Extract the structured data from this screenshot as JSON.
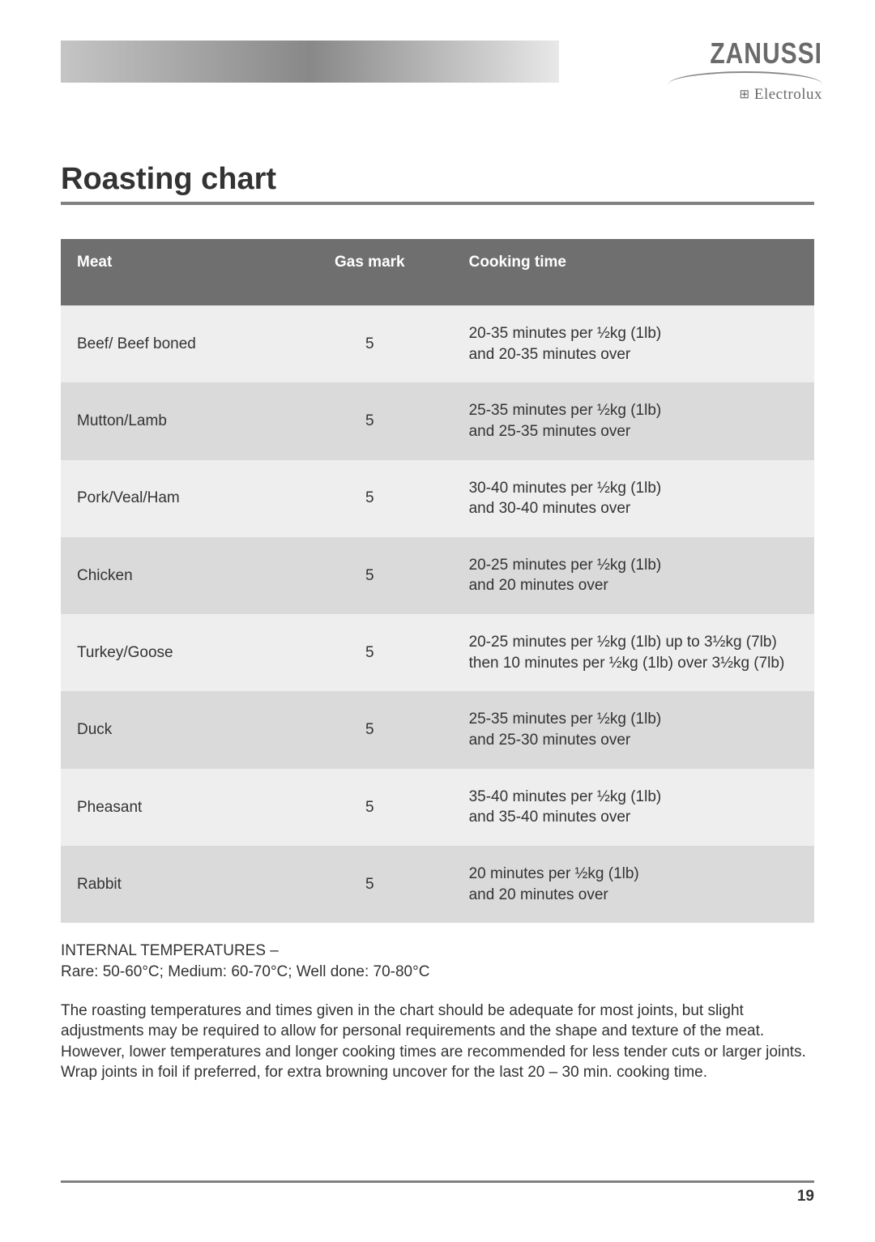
{
  "brand": {
    "primary": "ZANUSSI",
    "secondary": "Electrolux",
    "secondary_icon": "⊞"
  },
  "title": "Roasting chart",
  "table": {
    "columns": [
      "Meat",
      "Gas mark",
      "Cooking time"
    ],
    "col_widths_pct": [
      30,
      22,
      48
    ],
    "header_bg": "#6f6f6f",
    "header_fg": "#ffffff",
    "row_bg_odd": "#eeeeee",
    "row_bg_even": "#dadada",
    "font_size_pt": 14,
    "rows": [
      {
        "meat": "Beef/ Beef boned",
        "gas": "5",
        "time": "20-35 minutes per ½kg (1lb)\nand 20-35 minutes over"
      },
      {
        "meat": "Mutton/Lamb",
        "gas": "5",
        "time": "25-35 minutes per ½kg (1lb)\nand 25-35 minutes over"
      },
      {
        "meat": "Pork/Veal/Ham",
        "gas": "5",
        "time": "30-40 minutes per ½kg (1lb)\nand 30-40 minutes over"
      },
      {
        "meat": "Chicken",
        "gas": "5",
        "time": "20-25 minutes per ½kg (1lb)\nand 20 minutes over"
      },
      {
        "meat": "Turkey/Goose",
        "gas": "5",
        "time": "20-25 minutes per ½kg (1lb) up to 3½kg (7lb) then 10 minutes per ½kg (1lb) over 3½kg (7lb)"
      },
      {
        "meat": "Duck",
        "gas": "5",
        "time": "25-35 minutes per ½kg (1lb)\nand 25-30 minutes over"
      },
      {
        "meat": "Pheasant",
        "gas": "5",
        "time": "35-40 minutes per ½kg (1lb)\nand 35-40 minutes over"
      },
      {
        "meat": "Rabbit",
        "gas": "5",
        "time": "20 minutes per ½kg (1lb)\nand 20 minutes over"
      }
    ]
  },
  "notes": {
    "temps_label": "INTERNAL TEMPERATURES –",
    "temps_values": "Rare: 50-60°C; Medium: 60-70°C; Well done: 70-80°C",
    "para1": "The roasting temperatures and times given in the chart should be adequate for most joints, but slight adjustments may be required to allow for personal requirements and the shape and texture of the meat. However, lower temperatures and longer cooking times are recommended for less tender cuts or larger joints.",
    "para2": "Wrap joints in foil if preferred, for extra browning uncover for the last 20 – 30 min. cooking time."
  },
  "page_number": "19",
  "colors": {
    "title_rule": "#808080",
    "footer_rule": "#808080",
    "text": "#333333",
    "brand": "#6a6a6a"
  }
}
